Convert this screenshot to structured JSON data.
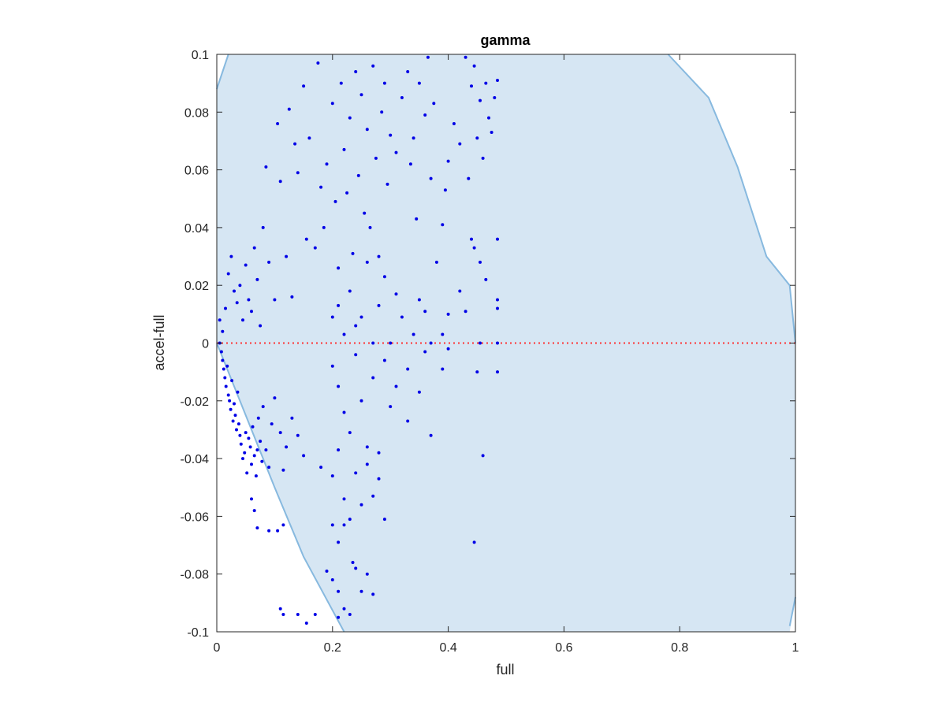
{
  "chart_data": {
    "type": "scatter",
    "title": "gamma",
    "xlabel": "full",
    "ylabel": "accel-full",
    "xlim": [
      0,
      1
    ],
    "ylim": [
      -0.1,
      0.1
    ],
    "xticks": [
      0,
      0.2,
      0.4,
      0.6,
      0.8,
      1
    ],
    "xtick_labels": [
      "0",
      "0.2",
      "0.4",
      "0.6",
      "0.8",
      "1"
    ],
    "yticks": [
      -0.1,
      -0.08,
      -0.06,
      -0.04,
      -0.02,
      0,
      0.02,
      0.04,
      0.06,
      0.08,
      0.1
    ],
    "ytick_labels": [
      "-0.1",
      "-0.08",
      "-0.06",
      "-0.04",
      "-0.02",
      "0",
      "0.02",
      "0.04",
      "0.06",
      "0.08",
      "0.1"
    ],
    "grid": false,
    "colors": {
      "points": "#0000e6",
      "region_fill": "#d6e6f3",
      "region_edge": "#87b9df",
      "reference_line": "#ff3333",
      "axes": "#262626"
    },
    "region": {
      "description": "feasible region",
      "left_boundary": [
        [
          0,
          0.088
        ],
        [
          0.02,
          0.1
        ]
      ],
      "lower_left_boundary": [
        [
          0,
          0
        ],
        [
          0.05,
          -0.025
        ],
        [
          0.1,
          -0.05
        ],
        [
          0.15,
          -0.074
        ],
        [
          0.22,
          -0.1
        ]
      ],
      "right_boundary": [
        [
          0.78,
          0.1
        ],
        [
          0.85,
          0.085
        ],
        [
          0.9,
          0.061
        ],
        [
          0.95,
          0.03
        ],
        [
          0.99,
          0.02
        ],
        [
          1,
          0
        ],
        [
          0.99,
          -0.098
        ],
        [
          1,
          -0.088
        ]
      ]
    },
    "reference_line": {
      "y": 0,
      "style": "dotted"
    },
    "points": [
      [
        0.005,
        0.0
      ],
      [
        0.008,
        -0.003
      ],
      [
        0.01,
        -0.006
      ],
      [
        0.012,
        -0.009
      ],
      [
        0.014,
        -0.012
      ],
      [
        0.016,
        -0.015
      ],
      [
        0.018,
        -0.008
      ],
      [
        0.02,
        -0.018
      ],
      [
        0.022,
        -0.02
      ],
      [
        0.024,
        -0.023
      ],
      [
        0.026,
        -0.013
      ],
      [
        0.028,
        -0.027
      ],
      [
        0.03,
        -0.021
      ],
      [
        0.032,
        -0.025
      ],
      [
        0.034,
        -0.03
      ],
      [
        0.036,
        -0.017
      ],
      [
        0.038,
        -0.028
      ],
      [
        0.04,
        -0.032
      ],
      [
        0.042,
        -0.035
      ],
      [
        0.045,
        -0.04
      ],
      [
        0.048,
        -0.038
      ],
      [
        0.05,
        -0.031
      ],
      [
        0.052,
        -0.045
      ],
      [
        0.055,
        -0.033
      ],
      [
        0.058,
        -0.036
      ],
      [
        0.06,
        -0.042
      ],
      [
        0.062,
        -0.029
      ],
      [
        0.065,
        -0.039
      ],
      [
        0.068,
        -0.046
      ],
      [
        0.07,
        -0.037
      ],
      [
        0.072,
        -0.026
      ],
      [
        0.075,
        -0.034
      ],
      [
        0.078,
        -0.041
      ],
      [
        0.08,
        -0.022
      ],
      [
        0.085,
        -0.037
      ],
      [
        0.09,
        -0.043
      ],
      [
        0.095,
        -0.028
      ],
      [
        0.1,
        -0.019
      ],
      [
        0.11,
        -0.031
      ],
      [
        0.115,
        -0.044
      ],
      [
        0.12,
        -0.036
      ],
      [
        0.13,
        -0.026
      ],
      [
        0.14,
        -0.032
      ],
      [
        0.15,
        -0.039
      ],
      [
        0.06,
        -0.054
      ],
      [
        0.065,
        -0.058
      ],
      [
        0.07,
        -0.064
      ],
      [
        0.09,
        -0.065
      ],
      [
        0.105,
        -0.065
      ],
      [
        0.115,
        -0.063
      ],
      [
        0.11,
        -0.092
      ],
      [
        0.115,
        -0.094
      ],
      [
        0.14,
        -0.094
      ],
      [
        0.155,
        -0.097
      ],
      [
        0.17,
        -0.094
      ],
      [
        0.005,
        0.008
      ],
      [
        0.01,
        0.004
      ],
      [
        0.015,
        0.012
      ],
      [
        0.02,
        0.024
      ],
      [
        0.025,
        0.03
      ],
      [
        0.03,
        0.018
      ],
      [
        0.035,
        0.014
      ],
      [
        0.04,
        0.02
      ],
      [
        0.045,
        0.008
      ],
      [
        0.05,
        0.027
      ],
      [
        0.055,
        0.015
      ],
      [
        0.06,
        0.011
      ],
      [
        0.065,
        0.033
      ],
      [
        0.07,
        0.022
      ],
      [
        0.075,
        0.006
      ],
      [
        0.08,
        0.04
      ],
      [
        0.085,
        0.061
      ],
      [
        0.09,
        0.028
      ],
      [
        0.1,
        0.015
      ],
      [
        0.105,
        0.076
      ],
      [
        0.11,
        0.056
      ],
      [
        0.12,
        0.03
      ],
      [
        0.125,
        0.081
      ],
      [
        0.13,
        0.016
      ],
      [
        0.135,
        0.069
      ],
      [
        0.14,
        0.059
      ],
      [
        0.15,
        0.089
      ],
      [
        0.155,
        0.036
      ],
      [
        0.16,
        0.071
      ],
      [
        0.17,
        0.033
      ],
      [
        0.175,
        0.097
      ],
      [
        0.18,
        0.054
      ],
      [
        0.185,
        0.04
      ],
      [
        0.19,
        0.062
      ],
      [
        0.2,
        0.083
      ],
      [
        0.205,
        0.049
      ],
      [
        0.21,
        0.026
      ],
      [
        0.215,
        0.09
      ],
      [
        0.22,
        0.067
      ],
      [
        0.225,
        0.052
      ],
      [
        0.23,
        0.078
      ],
      [
        0.235,
        0.031
      ],
      [
        0.24,
        0.094
      ],
      [
        0.245,
        0.058
      ],
      [
        0.25,
        0.086
      ],
      [
        0.255,
        0.045
      ],
      [
        0.26,
        0.074
      ],
      [
        0.265,
        0.04
      ],
      [
        0.27,
        0.096
      ],
      [
        0.275,
        0.064
      ],
      [
        0.28,
        0.03
      ],
      [
        0.285,
        0.08
      ],
      [
        0.29,
        0.09
      ],
      [
        0.295,
        0.055
      ],
      [
        0.3,
        0.072
      ],
      [
        0.31,
        0.066
      ],
      [
        0.32,
        0.085
      ],
      [
        0.33,
        0.094
      ],
      [
        0.335,
        0.062
      ],
      [
        0.34,
        0.071
      ],
      [
        0.345,
        0.043
      ],
      [
        0.35,
        0.09
      ],
      [
        0.36,
        0.079
      ],
      [
        0.365,
        0.099
      ],
      [
        0.37,
        0.057
      ],
      [
        0.375,
        0.083
      ],
      [
        0.39,
        0.041
      ],
      [
        0.395,
        0.053
      ],
      [
        0.4,
        0.063
      ],
      [
        0.41,
        0.076
      ],
      [
        0.42,
        0.069
      ],
      [
        0.43,
        0.099
      ],
      [
        0.435,
        0.057
      ],
      [
        0.44,
        0.089
      ],
      [
        0.445,
        0.096
      ],
      [
        0.45,
        0.071
      ],
      [
        0.455,
        0.084
      ],
      [
        0.46,
        0.064
      ],
      [
        0.465,
        0.09
      ],
      [
        0.47,
        0.078
      ],
      [
        0.475,
        0.073
      ],
      [
        0.48,
        0.085
      ],
      [
        0.485,
        0.091
      ],
      [
        0.44,
        0.036
      ],
      [
        0.445,
        0.033
      ],
      [
        0.455,
        0.028
      ],
      [
        0.465,
        0.022
      ],
      [
        0.485,
        0.036
      ],
      [
        0.485,
        0.015
      ],
      [
        0.485,
        0.012
      ],
      [
        0.485,
        0.0
      ],
      [
        0.485,
        -0.01
      ],
      [
        0.445,
        -0.069
      ],
      [
        0.46,
        -0.039
      ],
      [
        0.45,
        -0.01
      ],
      [
        0.455,
        0.0
      ],
      [
        0.2,
        0.009
      ],
      [
        0.21,
        0.013
      ],
      [
        0.22,
        0.003
      ],
      [
        0.23,
        0.018
      ],
      [
        0.24,
        0.006
      ],
      [
        0.25,
        0.009
      ],
      [
        0.26,
        0.028
      ],
      [
        0.27,
        0.0
      ],
      [
        0.28,
        0.013
      ],
      [
        0.29,
        0.023
      ],
      [
        0.3,
        0.0
      ],
      [
        0.31,
        0.017
      ],
      [
        0.32,
        0.009
      ],
      [
        0.33,
        -0.009
      ],
      [
        0.34,
        0.003
      ],
      [
        0.35,
        0.015
      ],
      [
        0.36,
        0.011
      ],
      [
        0.37,
        0.0
      ],
      [
        0.38,
        0.028
      ],
      [
        0.39,
        0.003
      ],
      [
        0.4,
        0.01
      ],
      [
        0.42,
        0.018
      ],
      [
        0.43,
        0.011
      ],
      [
        0.2,
        -0.008
      ],
      [
        0.21,
        -0.015
      ],
      [
        0.22,
        -0.024
      ],
      [
        0.23,
        -0.031
      ],
      [
        0.24,
        -0.004
      ],
      [
        0.25,
        -0.02
      ],
      [
        0.26,
        -0.036
      ],
      [
        0.27,
        -0.012
      ],
      [
        0.28,
        -0.038
      ],
      [
        0.29,
        -0.006
      ],
      [
        0.3,
        -0.022
      ],
      [
        0.31,
        -0.015
      ],
      [
        0.33,
        -0.027
      ],
      [
        0.35,
        -0.017
      ],
      [
        0.36,
        -0.003
      ],
      [
        0.37,
        -0.032
      ],
      [
        0.39,
        -0.009
      ],
      [
        0.4,
        -0.002
      ],
      [
        0.18,
        -0.043
      ],
      [
        0.2,
        -0.046
      ],
      [
        0.21,
        -0.037
      ],
      [
        0.22,
        -0.054
      ],
      [
        0.23,
        -0.061
      ],
      [
        0.24,
        -0.045
      ],
      [
        0.25,
        -0.056
      ],
      [
        0.26,
        -0.042
      ],
      [
        0.27,
        -0.053
      ],
      [
        0.28,
        -0.047
      ],
      [
        0.29,
        -0.061
      ],
      [
        0.2,
        -0.063
      ],
      [
        0.21,
        -0.069
      ],
      [
        0.22,
        -0.063
      ],
      [
        0.235,
        -0.076
      ],
      [
        0.24,
        -0.078
      ],
      [
        0.25,
        -0.086
      ],
      [
        0.26,
        -0.08
      ],
      [
        0.27,
        -0.087
      ],
      [
        0.19,
        -0.079
      ],
      [
        0.2,
        -0.082
      ],
      [
        0.21,
        -0.086
      ],
      [
        0.22,
        -0.092
      ],
      [
        0.23,
        -0.094
      ],
      [
        0.21,
        -0.095
      ]
    ]
  }
}
